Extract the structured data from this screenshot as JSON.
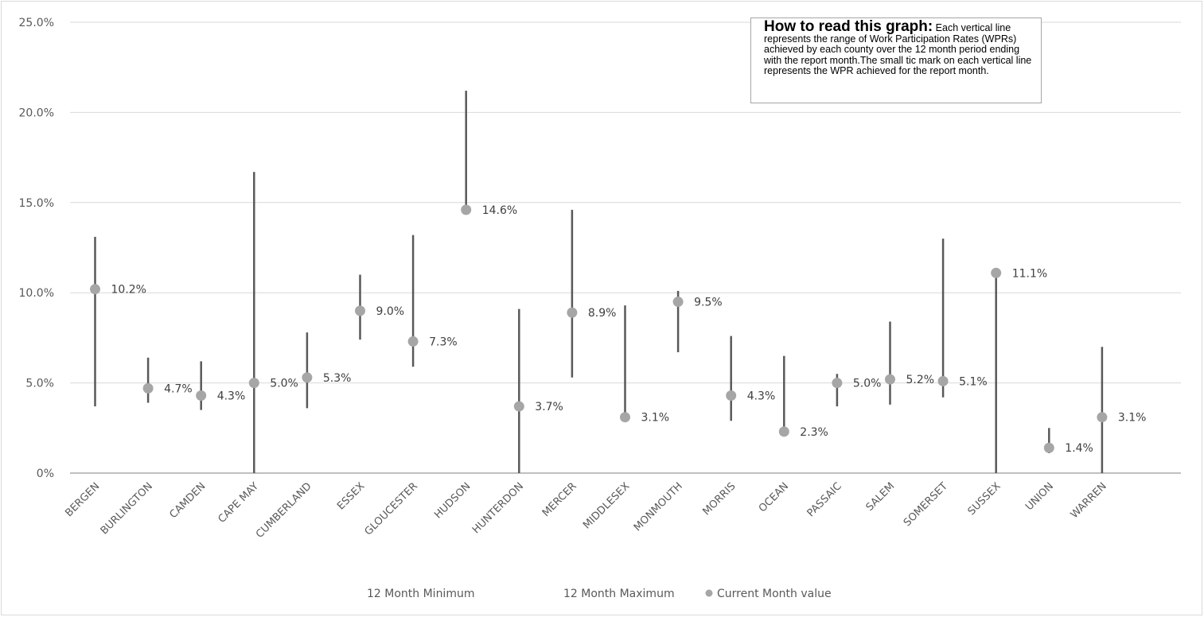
{
  "chart_data": {
    "type": "range-dot",
    "categories": [
      "BERGEN",
      "BURLINGTON",
      "CAMDEN",
      "CAPE MAY",
      "CUMBERLAND",
      "ESSEX",
      "GLOUCESTER",
      "HUDSON",
      "HUNTERDON",
      "MERCER",
      "MIDDLESEX",
      "MONMOUTH",
      "MORRIS",
      "OCEAN",
      "PASSAIC",
      "SALEM",
      "SOMERSET",
      "SUSSEX",
      "UNION",
      "WARREN"
    ],
    "series": [
      {
        "name": "12 Month Minimum",
        "values": [
          3.7,
          3.9,
          3.5,
          0.0,
          3.6,
          7.4,
          5.9,
          14.6,
          0.0,
          5.3,
          3.1,
          6.7,
          2.9,
          2.3,
          3.7,
          3.8,
          4.2,
          0.0,
          1.1,
          0.0
        ]
      },
      {
        "name": "12 Month Maximum",
        "values": [
          13.1,
          6.4,
          6.2,
          16.7,
          7.8,
          11.0,
          13.2,
          21.2,
          9.1,
          14.6,
          9.3,
          10.1,
          7.6,
          6.5,
          5.5,
          8.4,
          13.0,
          11.1,
          2.5,
          7.0
        ]
      },
      {
        "name": "Current Month value",
        "values": [
          10.2,
          4.7,
          4.3,
          5.0,
          5.3,
          9.0,
          7.3,
          14.6,
          3.7,
          8.9,
          3.1,
          9.5,
          4.3,
          2.3,
          5.0,
          5.2,
          5.1,
          11.1,
          1.4,
          3.1
        ]
      }
    ],
    "data_labels": [
      "10.2%",
      "4.7%",
      "4.3%",
      "5.0%",
      "5.3%",
      "9.0%",
      "7.3%",
      "14.6%",
      "3.7%",
      "8.9%",
      "3.1%",
      "9.5%",
      "4.3%",
      "2.3%",
      "5.0%",
      "5.2%",
      "5.1%",
      "11.1%",
      "1.4%",
      "3.1%"
    ],
    "y_ticks": [
      "0%",
      "5.0%",
      "10.0%",
      "15.0%",
      "20.0%",
      "25.0%"
    ],
    "ylim": [
      0,
      25
    ],
    "grid": true,
    "legend_position": "bottom",
    "colors": {
      "range_line": "#595959",
      "marker": "#a6a6a6",
      "grid": "#d9d9d9",
      "axis": "#bfbfbf"
    }
  },
  "note": {
    "title": "How to read this graph:",
    "body": "Each vertical line represents the range of Work Participation Rates (WPRs) achieved by each county over the 12 month period ending with the report month.The small tic mark on each vertical line represents the WPR achieved for the report month."
  }
}
